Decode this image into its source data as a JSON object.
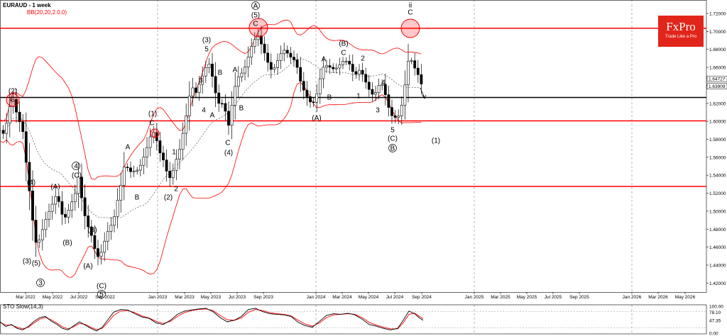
{
  "header": {
    "title": "EURAUD - 1 week",
    "indicator": "BB(20,20,2.0,0)",
    "stoch_label": "STO Slow(14,3)"
  },
  "logo": {
    "brand": "FxPro",
    "tagline": "Trade Like a Pro"
  },
  "colors": {
    "candle": "#000000",
    "bands": "#ff0000",
    "level_red": "#ff0000",
    "level_black": "#000000",
    "stoch_main": "#000000",
    "stoch_signal": "#ff0000",
    "logo_bg": "#e1251b"
  },
  "chart_data": {
    "type": "candlestick",
    "symbol": "EURAUD",
    "timeframe": "1 week",
    "ylim": [
      1.41,
      1.735
    ],
    "y_ticks": [
      "1.72000",
      "1.70000",
      "1.68000",
      "1.66000",
      "1.64000",
      "1.62000",
      "1.60000",
      "1.58000",
      "1.56000",
      "1.54000",
      "1.52000",
      "1.50000",
      "1.48000",
      "1.46000",
      "1.44000",
      "1.42000"
    ],
    "price_labels": [
      "1.64727",
      "1.63909"
    ],
    "x_ticks": [
      "Mar 2022",
      "May 2022",
      "Jul 2022",
      "Sep 2022",
      "Jan 2023",
      "Mar 2023",
      "May 2023",
      "Jul 2023",
      "Sep 2023",
      "Jan 2024",
      "Mar 2024",
      "May 2024",
      "Jul 2024",
      "Sep 2024",
      "Jan 2025",
      "Mar 2025",
      "May 2025",
      "Jul 2025",
      "Sep 2025",
      "Jan 2026",
      "Mar 2026",
      "May 2026"
    ],
    "horizontal_levels": [
      {
        "value": 1.7035,
        "color": "red"
      },
      {
        "value": 1.6265,
        "color": "black"
      },
      {
        "value": 1.6005,
        "color": "red"
      },
      {
        "value": 1.5275,
        "color": "red"
      }
    ],
    "price_path": [
      [
        0,
        1.59
      ],
      [
        4,
        1.585
      ],
      [
        10,
        1.6
      ],
      [
        17,
        1.63
      ],
      [
        20,
        1.618
      ],
      [
        25,
        1.605
      ],
      [
        32,
        1.59
      ],
      [
        36,
        1.56
      ],
      [
        40,
        1.532
      ],
      [
        44,
        1.505
      ],
      [
        48,
        1.475
      ],
      [
        52,
        1.46
      ],
      [
        56,
        1.47
      ],
      [
        60,
        1.48
      ],
      [
        64,
        1.49
      ],
      [
        68,
        1.498
      ],
      [
        72,
        1.505
      ],
      [
        76,
        1.512
      ],
      [
        80,
        1.52
      ],
      [
        86,
        1.5
      ],
      [
        90,
        1.49
      ],
      [
        96,
        1.5
      ],
      [
        101,
        1.51
      ],
      [
        106,
        1.52
      ],
      [
        110,
        1.54
      ],
      [
        114,
        1.52
      ],
      [
        118,
        1.5
      ],
      [
        122,
        1.487
      ],
      [
        127,
        1.477
      ],
      [
        131,
        1.468
      ],
      [
        135,
        1.452
      ],
      [
        140,
        1.448
      ],
      [
        145,
        1.46
      ],
      [
        150,
        1.475
      ],
      [
        155,
        1.482
      ],
      [
        160,
        1.49
      ],
      [
        165,
        1.51
      ],
      [
        170,
        1.528
      ],
      [
        175,
        1.55
      ],
      [
        180,
        1.548
      ],
      [
        185,
        1.543
      ],
      [
        190,
        1.545
      ],
      [
        195,
        1.546
      ],
      [
        200,
        1.555
      ],
      [
        206,
        1.568
      ],
      [
        211,
        1.582
      ],
      [
        216,
        1.588
      ],
      [
        221,
        1.578
      ],
      [
        227,
        1.56
      ],
      [
        232,
        1.555
      ],
      [
        237,
        1.535
      ],
      [
        242,
        1.54
      ],
      [
        247,
        1.555
      ],
      [
        252,
        1.565
      ],
      [
        256,
        1.58
      ],
      [
        262,
        1.605
      ],
      [
        266,
        1.625
      ],
      [
        270,
        1.64
      ],
      [
        275,
        1.63
      ],
      [
        280,
        1.64
      ],
      [
        285,
        1.65
      ],
      [
        290,
        1.66
      ],
      [
        294,
        1.665
      ],
      [
        299,
        1.65
      ],
      [
        304,
        1.63
      ],
      [
        309,
        1.618
      ],
      [
        313,
        1.62
      ],
      [
        318,
        1.61
      ],
      [
        323,
        1.592
      ],
      [
        326,
        1.615
      ],
      [
        330,
        1.635
      ],
      [
        334,
        1.648
      ],
      [
        339,
        1.652
      ],
      [
        344,
        1.658
      ],
      [
        349,
        1.67
      ],
      [
        354,
        1.683
      ],
      [
        358,
        1.69
      ],
      [
        363,
        1.696
      ],
      [
        367,
        1.688
      ],
      [
        371,
        1.68
      ],
      [
        375,
        1.67
      ],
      [
        380,
        1.66
      ],
      [
        384,
        1.655
      ],
      [
        389,
        1.665
      ],
      [
        393,
        1.67
      ],
      [
        398,
        1.68
      ],
      [
        403,
        1.678
      ],
      [
        408,
        1.672
      ],
      [
        413,
        1.67
      ],
      [
        418,
        1.662
      ],
      [
        423,
        1.645
      ],
      [
        427,
        1.636
      ],
      [
        432,
        1.628
      ],
      [
        436,
        1.622
      ],
      [
        441,
        1.62
      ],
      [
        446,
        1.63
      ],
      [
        450,
        1.645
      ],
      [
        455,
        1.66
      ],
      [
        460,
        1.662
      ],
      [
        465,
        1.66
      ],
      [
        470,
        1.658
      ],
      [
        476,
        1.66
      ],
      [
        481,
        1.666
      ],
      [
        486,
        1.668
      ],
      [
        492,
        1.664
      ],
      [
        497,
        1.655
      ],
      [
        502,
        1.652
      ],
      [
        507,
        1.658
      ],
      [
        512,
        1.65
      ],
      [
        517,
        1.64
      ],
      [
        522,
        1.632
      ],
      [
        527,
        1.628
      ],
      [
        532,
        1.638
      ],
      [
        537,
        1.644
      ],
      [
        542,
        1.632
      ],
      [
        546,
        1.62
      ],
      [
        550,
        1.607
      ],
      [
        555,
        1.605
      ],
      [
        560,
        1.603
      ],
      [
        565,
        1.615
      ],
      [
        569,
        1.63
      ],
      [
        573,
        1.66
      ],
      [
        577,
        1.674
      ],
      [
        581,
        1.664
      ],
      [
        585,
        1.658
      ],
      [
        590,
        1.65
      ],
      [
        594,
        1.64
      ],
      [
        598,
        1.632
      ]
    ]
  },
  "stochastic": {
    "name": "STO Slow(14,3)",
    "ylim": [
      0,
      100
    ],
    "levels": [
      80,
      20
    ],
    "tick_labels": [
      "100.00",
      "78.10",
      "47.35",
      "0.00"
    ],
    "k": [
      [
        0,
        42
      ],
      [
        8,
        25
      ],
      [
        16,
        32
      ],
      [
        24,
        18
      ],
      [
        32,
        12
      ],
      [
        40,
        25
      ],
      [
        48,
        44
      ],
      [
        56,
        58
      ],
      [
        64,
        62
      ],
      [
        72,
        45
      ],
      [
        80,
        33
      ],
      [
        88,
        18
      ],
      [
        96,
        12
      ],
      [
        104,
        28
      ],
      [
        112,
        42
      ],
      [
        120,
        30
      ],
      [
        128,
        18
      ],
      [
        136,
        8
      ],
      [
        144,
        22
      ],
      [
        152,
        50
      ],
      [
        160,
        78
      ],
      [
        170,
        88
      ],
      [
        180,
        86
      ],
      [
        190,
        72
      ],
      [
        200,
        60
      ],
      [
        210,
        55
      ],
      [
        220,
        38
      ],
      [
        230,
        32
      ],
      [
        240,
        48
      ],
      [
        250,
        70
      ],
      [
        260,
        82
      ],
      [
        270,
        86
      ],
      [
        280,
        90
      ],
      [
        290,
        92
      ],
      [
        300,
        80
      ],
      [
        310,
        58
      ],
      [
        320,
        42
      ],
      [
        330,
        48
      ],
      [
        340,
        62
      ],
      [
        350,
        88
      ],
      [
        360,
        92
      ],
      [
        370,
        80
      ],
      [
        380,
        72
      ],
      [
        390,
        70
      ],
      [
        400,
        68
      ],
      [
        410,
        62
      ],
      [
        420,
        40
      ],
      [
        430,
        28
      ],
      [
        440,
        22
      ],
      [
        450,
        44
      ],
      [
        460,
        66
      ],
      [
        470,
        72
      ],
      [
        480,
        70
      ],
      [
        490,
        74
      ],
      [
        500,
        68
      ],
      [
        510,
        52
      ],
      [
        520,
        32
      ],
      [
        530,
        26
      ],
      [
        540,
        18
      ],
      [
        550,
        12
      ],
      [
        560,
        18
      ],
      [
        568,
        48
      ],
      [
        576,
        82
      ],
      [
        584,
        72
      ],
      [
        590,
        58
      ],
      [
        596,
        48
      ]
    ],
    "d": [
      [
        0,
        40
      ],
      [
        8,
        30
      ],
      [
        16,
        30
      ],
      [
        24,
        22
      ],
      [
        32,
        16
      ],
      [
        40,
        22
      ],
      [
        48,
        38
      ],
      [
        56,
        52
      ],
      [
        64,
        58
      ],
      [
        72,
        50
      ],
      [
        80,
        38
      ],
      [
        88,
        24
      ],
      [
        96,
        16
      ],
      [
        104,
        24
      ],
      [
        112,
        36
      ],
      [
        120,
        33
      ],
      [
        128,
        22
      ],
      [
        136,
        13
      ],
      [
        144,
        18
      ],
      [
        152,
        40
      ],
      [
        160,
        66
      ],
      [
        170,
        82
      ],
      [
        180,
        84
      ],
      [
        190,
        76
      ],
      [
        200,
        64
      ],
      [
        210,
        56
      ],
      [
        220,
        44
      ],
      [
        230,
        36
      ],
      [
        240,
        44
      ],
      [
        250,
        62
      ],
      [
        260,
        76
      ],
      [
        270,
        84
      ],
      [
        280,
        88
      ],
      [
        290,
        90
      ],
      [
        300,
        84
      ],
      [
        310,
        66
      ],
      [
        320,
        50
      ],
      [
        330,
        48
      ],
      [
        340,
        56
      ],
      [
        350,
        78
      ],
      [
        360,
        88
      ],
      [
        370,
        84
      ],
      [
        380,
        76
      ],
      [
        390,
        72
      ],
      [
        400,
        70
      ],
      [
        410,
        64
      ],
      [
        420,
        48
      ],
      [
        430,
        34
      ],
      [
        440,
        26
      ],
      [
        450,
        38
      ],
      [
        460,
        58
      ],
      [
        470,
        68
      ],
      [
        480,
        70
      ],
      [
        490,
        72
      ],
      [
        500,
        70
      ],
      [
        510,
        58
      ],
      [
        520,
        40
      ],
      [
        530,
        30
      ],
      [
        540,
        22
      ],
      [
        550,
        16
      ],
      [
        560,
        16
      ],
      [
        568,
        38
      ],
      [
        576,
        70
      ],
      [
        584,
        74
      ],
      [
        590,
        64
      ],
      [
        596,
        54
      ]
    ]
  },
  "wave_labels": [
    {
      "t": "(2)",
      "x": 18,
      "y": 124
    },
    {
      "t": "C",
      "x": 18,
      "y": 136
    },
    {
      "t": "(4)",
      "x": 44,
      "y": 253
    },
    {
      "t": "(3)",
      "x": 38,
      "y": 364
    },
    {
      "t": "(5)",
      "x": 51,
      "y": 367
    },
    {
      "t": "3",
      "x": 57,
      "y": 395
    },
    {
      "t": "(A)",
      "x": 78,
      "y": 259
    },
    {
      "t": "(B)",
      "x": 95,
      "y": 338
    },
    {
      "t": "4",
      "x": 107,
      "y": 230
    },
    {
      "t": "(C)",
      "x": 108,
      "y": 243
    },
    {
      "t": "(B)",
      "x": 130,
      "y": 320
    },
    {
      "t": "(A)",
      "x": 124,
      "y": 371
    },
    {
      "t": "(C)",
      "x": 143,
      "y": 399
    },
    {
      "t": "5",
      "x": 143,
      "y": 411
    },
    {
      "t": "A",
      "x": 180,
      "y": 203
    },
    {
      "t": "B",
      "x": 193,
      "y": 274
    },
    {
      "t": "(1)",
      "x": 215,
      "y": 156
    },
    {
      "t": "C",
      "x": 214,
      "y": 169
    },
    {
      "t": "1",
      "x": 245,
      "y": 210
    },
    {
      "t": "2",
      "x": 248,
      "y": 262
    },
    {
      "t": "(2)",
      "x": 237,
      "y": 274
    },
    {
      "t": "(3)",
      "x": 291,
      "y": 52
    },
    {
      "t": "5",
      "x": 291,
      "y": 65
    },
    {
      "t": "3",
      "x": 283,
      "y": 109
    },
    {
      "t": "B",
      "x": 310,
      "y": 98
    },
    {
      "t": "4",
      "x": 287,
      "y": 151
    },
    {
      "t": "A",
      "x": 299,
      "y": 158
    },
    {
      "t": "B",
      "x": 340,
      "y": 148
    },
    {
      "t": "A",
      "x": 331,
      "y": 94
    },
    {
      "t": "C",
      "x": 321,
      "y": 197
    },
    {
      "t": "(4)",
      "x": 322,
      "y": 211
    },
    {
      "t": "A",
      "x": 360,
      "y": 4
    },
    {
      "t": "(5)",
      "x": 360,
      "y": 17
    },
    {
      "t": "C",
      "x": 360,
      "y": 29
    },
    {
      "t": "A",
      "x": 456,
      "y": 79
    },
    {
      "t": "B",
      "x": 464,
      "y": 133
    },
    {
      "t": "(A)",
      "x": 446,
      "y": 162
    },
    {
      "t": "(B)",
      "x": 484,
      "y": 57
    },
    {
      "t": "C",
      "x": 484,
      "y": 70
    },
    {
      "t": "2",
      "x": 511,
      "y": 78
    },
    {
      "t": "4",
      "x": 540,
      "y": 112
    },
    {
      "t": "1",
      "x": 505,
      "y": 131
    },
    {
      "t": "3",
      "x": 532,
      "y": 151
    },
    {
      "t": "5",
      "x": 553,
      "y": 179
    },
    {
      "t": "(C)",
      "x": 553,
      "y": 191
    },
    {
      "t": "B",
      "x": 553,
      "y": 205
    },
    {
      "t": "ii",
      "x": 578,
      "y": 3
    },
    {
      "t": "C",
      "x": 578,
      "y": 13
    },
    {
      "t": "(1)",
      "x": 614,
      "y": 194
    }
  ],
  "circled_labels": [
    "A",
    "3",
    "4",
    "5",
    "B",
    "C"
  ]
}
